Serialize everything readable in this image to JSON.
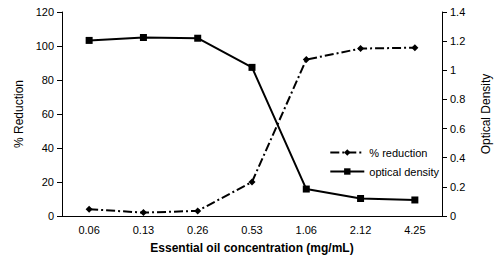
{
  "chart_data": {
    "type": "line",
    "x_label": "Essential oil concentration (mg/mL)",
    "y_label": "% Reduction",
    "y2_label": "Optical Density",
    "categories": [
      "0.06",
      "0.13",
      "0.26",
      "0.53",
      "1.06",
      "2.12",
      "4.25"
    ],
    "series": [
      {
        "name": "% reduction",
        "color": "#000000",
        "marker": "diamond",
        "line_style": "dashdot",
        "values": [
          4,
          2,
          3,
          20,
          92,
          98.5,
          99
        ]
      },
      {
        "name": "optical density",
        "color": "#000000",
        "marker": "square",
        "line_style": "solid",
        "axis": "y2",
        "values": [
          1.205,
          1.225,
          1.22,
          1.02,
          0.185,
          0.12,
          0.11
        ]
      }
    ],
    "ylim": [
      0,
      120
    ],
    "yticks": [
      0,
      20,
      40,
      60,
      80,
      100,
      120
    ],
    "y2lim": [
      0,
      1.4
    ],
    "y2ticks": [
      0,
      0.2,
      0.4,
      0.6,
      0.8,
      1,
      1.2,
      1.4
    ],
    "grid": false,
    "legend": "right"
  }
}
